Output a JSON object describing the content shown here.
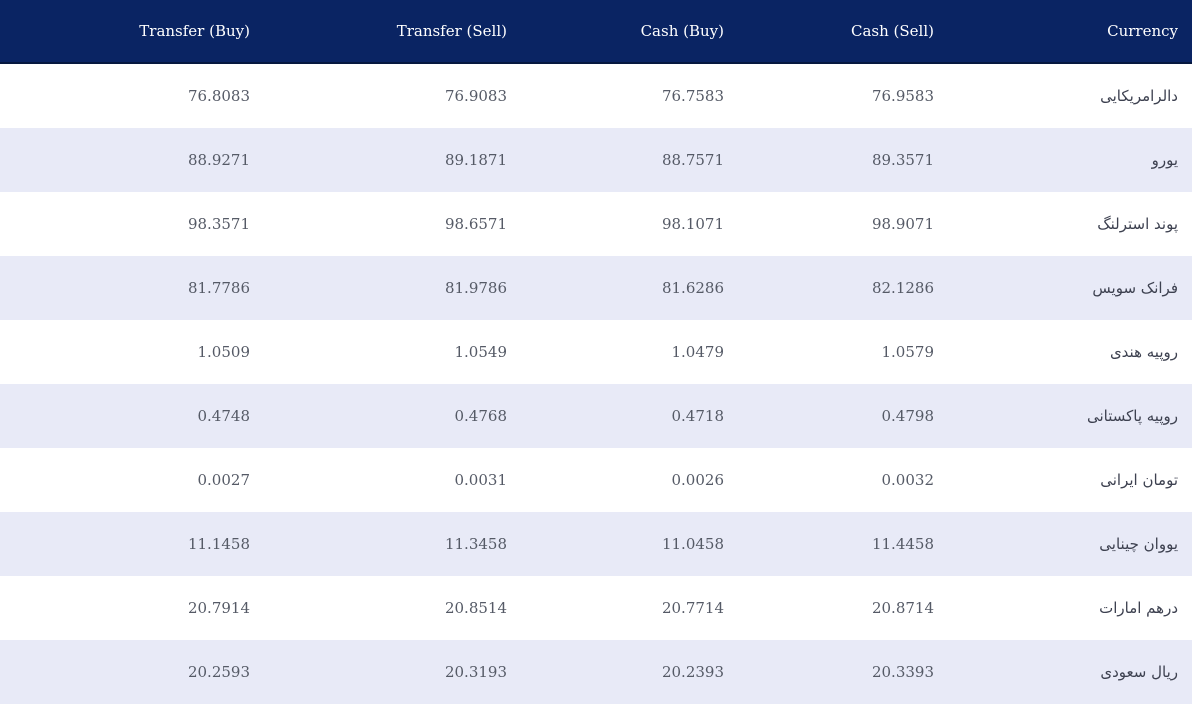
{
  "table": {
    "headers": {
      "transfer_buy": "Transfer (Buy)",
      "transfer_sell": "Transfer (Sell)",
      "cash_buy": "Cash (Buy)",
      "cash_sell": "Cash (Sell)",
      "currency": "Currency"
    },
    "rows": [
      {
        "currency": "دالرامریکایی",
        "cash_sell": "76.9583",
        "cash_buy": "76.7583",
        "transfer_sell": "76.9083",
        "transfer_buy": "76.8083"
      },
      {
        "currency": "یورو",
        "cash_sell": "89.3571",
        "cash_buy": "88.7571",
        "transfer_sell": "89.1871",
        "transfer_buy": "88.9271"
      },
      {
        "currency": "پوند استرلنگ",
        "cash_sell": "98.9071",
        "cash_buy": "98.1071",
        "transfer_sell": "98.6571",
        "transfer_buy": "98.3571"
      },
      {
        "currency": "فرانک سویس",
        "cash_sell": "82.1286",
        "cash_buy": "81.6286",
        "transfer_sell": "81.9786",
        "transfer_buy": "81.7786"
      },
      {
        "currency": "روپیه هندی",
        "cash_sell": "1.0579",
        "cash_buy": "1.0479",
        "transfer_sell": "1.0549",
        "transfer_buy": "1.0509"
      },
      {
        "currency": "روپیه پاکستانی",
        "cash_sell": "0.4798",
        "cash_buy": "0.4718",
        "transfer_sell": "0.4768",
        "transfer_buy": "0.4748"
      },
      {
        "currency": "تومان ایرانی",
        "cash_sell": "0.0032",
        "cash_buy": "0.0026",
        "transfer_sell": "0.0031",
        "transfer_buy": "0.0027"
      },
      {
        "currency": "یووان چینایی",
        "cash_sell": "11.4458",
        "cash_buy": "11.0458",
        "transfer_sell": "11.3458",
        "transfer_buy": "11.1458"
      },
      {
        "currency": "درهم امارات",
        "cash_sell": "20.8714",
        "cash_buy": "20.7714",
        "transfer_sell": "20.8514",
        "transfer_buy": "20.7914"
      },
      {
        "currency": "ریال سعودی",
        "cash_sell": "20.3393",
        "cash_buy": "20.2393",
        "transfer_sell": "20.3193",
        "transfer_buy": "20.2593"
      }
    ]
  },
  "colors": {
    "header_background": "#0a2463",
    "header_text": "#ffffff",
    "row_stripe": "#e8eaf7",
    "cell_text": "#555a66"
  }
}
